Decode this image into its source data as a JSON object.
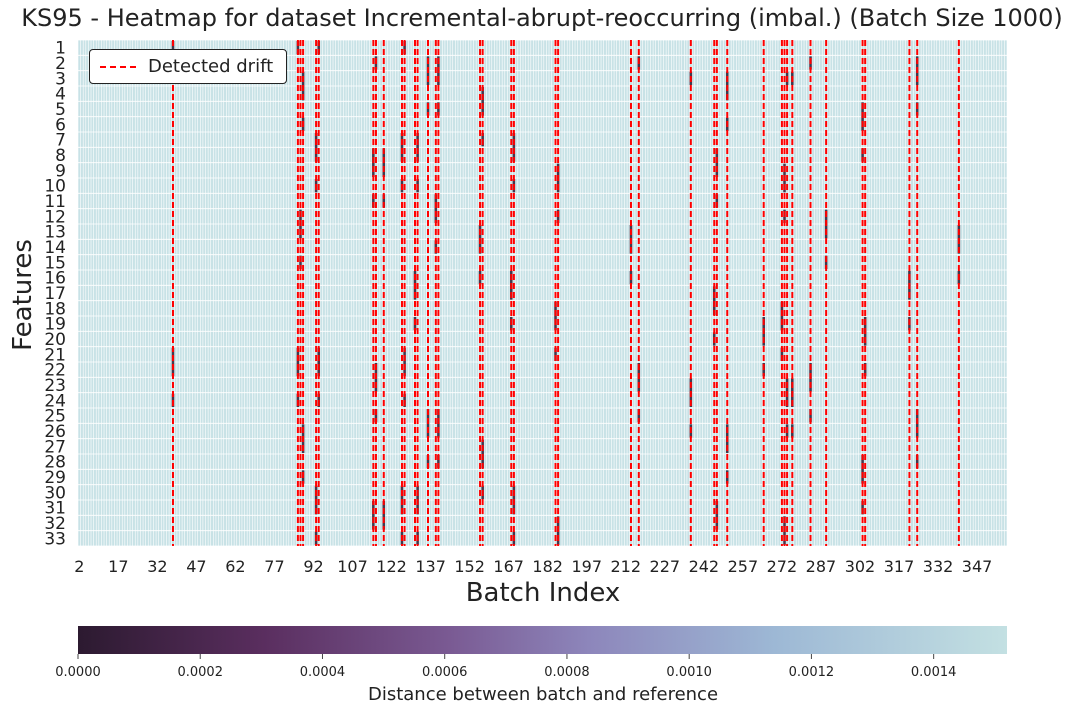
{
  "chart_data": {
    "type": "heatmap",
    "title": "KS95 - Heatmap for dataset Incremental-abrupt-reoccurring (imbal.) (Batch Size 1000)",
    "xlabel": "Batch Index",
    "ylabel": "Features",
    "x_tick_labels": [
      "2",
      "17",
      "32",
      "47",
      "62",
      "77",
      "92",
      "107",
      "122",
      "137",
      "152",
      "167",
      "182",
      "197",
      "212",
      "227",
      "242",
      "257",
      "272",
      "287",
      "302",
      "317",
      "332",
      "347"
    ],
    "y_tick_labels": [
      "1",
      "2",
      "3",
      "4",
      "5",
      "6",
      "7",
      "8",
      "9",
      "10",
      "11",
      "12",
      "13",
      "14",
      "15",
      "16",
      "17",
      "18",
      "19",
      "20",
      "21",
      "22",
      "23",
      "24",
      "25",
      "26",
      "27",
      "28",
      "29",
      "30",
      "31",
      "32",
      "33"
    ],
    "batch_range": [
      2,
      358
    ],
    "legend": {
      "label": "Detected drift",
      "placement": "top-left"
    },
    "drift_batches": [
      38,
      86,
      87,
      88,
      93,
      94,
      115,
      116,
      119,
      126,
      127,
      131,
      132,
      136,
      139,
      140,
      156,
      157,
      168,
      169,
      185,
      186,
      214,
      217,
      237,
      246,
      247,
      251,
      265,
      272,
      273,
      274,
      276,
      283,
      289,
      303,
      304,
      321,
      324,
      340
    ],
    "colorbar": {
      "label": "Distance between batch and reference",
      "range": [
        0,
        0.00152
      ],
      "ticks": [
        "0.0000",
        "0.0002",
        "0.0004",
        "0.0006",
        "0.0008",
        "0.0010",
        "0.0012",
        "0.0014"
      ],
      "colors": [
        "#2c1a30",
        "#5a2e5f",
        "#7a5a93",
        "#8d86bb",
        "#9db8d5",
        "#c3e0e2"
      ]
    },
    "dominant_value": 0.0015,
    "cell_color": "#c8e2e6",
    "grid_line_color": "#ffffff",
    "drift_line_color": "#ff0000"
  }
}
